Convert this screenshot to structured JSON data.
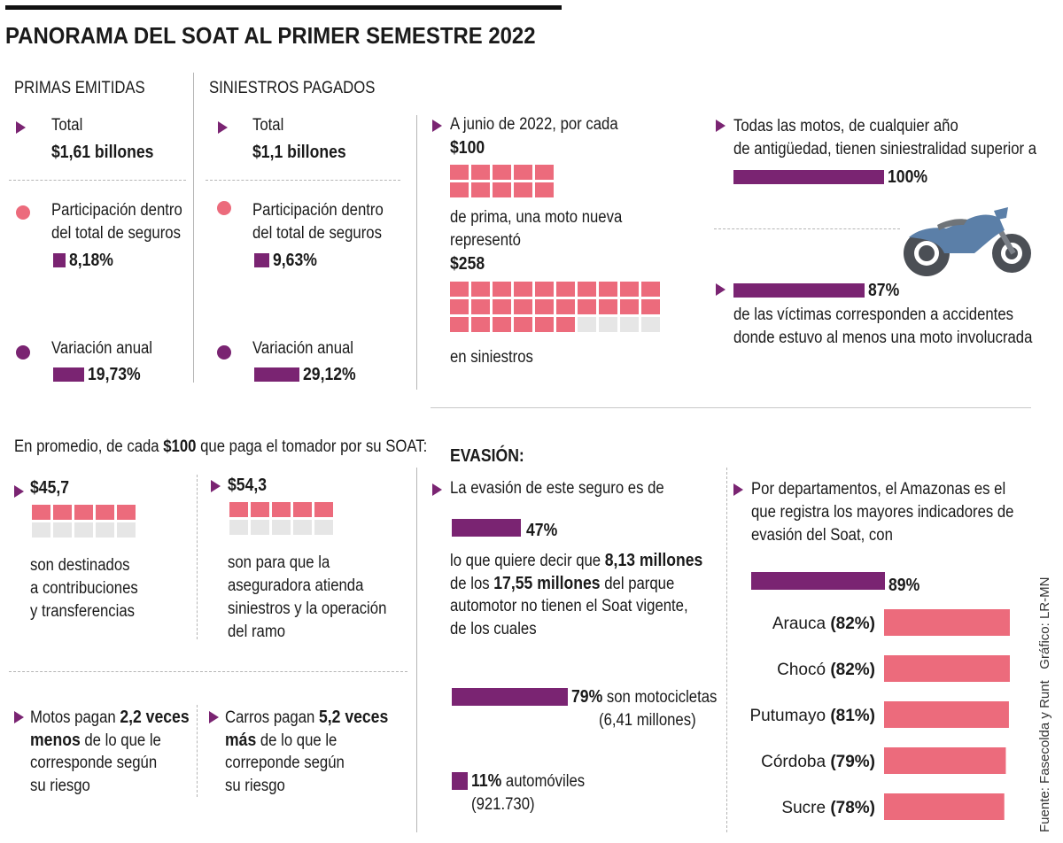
{
  "title": "PANORAMA DEL SOAT AL PRIMER SEMESTRE 2022",
  "colors": {
    "accent_purple": "#7a2472",
    "accent_pink": "#ec6b7c",
    "grid_off": "#e6e6e6"
  },
  "credits": {
    "source": "Fuente: Fasecolda y Runt",
    "graphic": "Gráfico: LR-MN"
  },
  "primas": {
    "header": "PRIMAS EMITIDAS",
    "total_label": "Total",
    "total_value": "$1,61 billones",
    "part_line1": "Participación dentro",
    "part_line2": "del total de seguros",
    "part_value": "8,18%",
    "var_label": "Variación anual",
    "var_value": "19,73%"
  },
  "siniestros": {
    "header": "SINIESTROS PAGADOS",
    "total_label": "Total",
    "total_value": "$1,1 billones",
    "part_line1": "Participación dentro",
    "part_line2": "del total de seguros",
    "part_value": "9,63%",
    "var_label": "Variación anual",
    "var_value": "29,12%"
  },
  "moto_box": {
    "line1": "A junio de 2022, por cada",
    "amount1": "$100",
    "line2": "de prima, una moto nueva",
    "line3": "representó",
    "amount2": "$258",
    "line4": "en siniestros"
  },
  "motos_right": {
    "line1": "Todas las motos, de cualquier año",
    "line2": "de antigüedad, tienen siniestralidad superior a",
    "value1": "100%",
    "value2": "87%",
    "line3": "de las víctimas corresponden a accidentes",
    "line4": "donde estuvo al menos una moto involucrada"
  },
  "promedio": {
    "intro_pre": "En promedio, de cada ",
    "intro_bold": "$100",
    "intro_post": " que paga el tomador por su SOAT:",
    "left_value": "$45,7",
    "left_l1": "son destinados",
    "left_l2": "a contribuciones",
    "left_l3": "y transferencias",
    "right_value": "$54,3",
    "right_l1": "son para que la",
    "right_l2": "aseguradora atienda",
    "right_l3": "siniestros y la operación",
    "right_l4": "del ramo"
  },
  "pagan": {
    "motos_pre": "Motos pagan ",
    "motos_bold1": "2,2 veces",
    "motos_bold2": "menos",
    "motos_post": " de lo que le",
    "motos_l3": "corresponde según",
    "motos_l4": "su riesgo",
    "carros_pre": "Carros pagan ",
    "carros_bold1": "5,2 veces",
    "carros_bold2": "más",
    "carros_post": " de lo que le",
    "carros_l3": "correponde según",
    "carros_l4": "su riesgo"
  },
  "evasion": {
    "header": "EVASIÓN:",
    "intro": "La evasión de este seguro es de",
    "value": "47%",
    "desc_pre": "lo que quiere decir que ",
    "desc_bold1": "8,13 millones",
    "desc_l2_pre": "de los ",
    "desc_bold2": "17,55 millones",
    "desc_l2_post": " del parque",
    "desc_l3": "automotor no tienen el Soat vigente,",
    "desc_l4": "de los cuales",
    "motos_value": "79%",
    "motos_label": " son motocicletas",
    "motos_sub": "(6,41 millones)",
    "autos_value": "11%",
    "autos_label": " automóviles",
    "autos_sub": "(921.730)"
  },
  "departamentos": {
    "line1": "Por departamentos, el Amazonas es el",
    "line2": "que registra los mayores indicadores de",
    "line3": "evasión del Soat, con",
    "amazonas_value": "89%"
  },
  "chart_data": [
    {
      "type": "bar",
      "title": "PRIMAS EMITIDAS / SINIESTROS PAGADOS",
      "categories": [
        "Participación primas",
        "Variación primas",
        "Participación siniestros",
        "Variación siniestros"
      ],
      "values": [
        8.18,
        19.73,
        9.63,
        29.12
      ],
      "unit": "%"
    },
    {
      "type": "table",
      "title": "Por cada $100 de prima, una moto nueva representó en siniestros",
      "series": [
        {
          "name": "prima",
          "values": [
            100
          ]
        },
        {
          "name": "siniestros",
          "values": [
            258
          ]
        }
      ]
    },
    {
      "type": "bar",
      "title": "Siniestralidad motos",
      "categories": [
        "siniestralidad superior a",
        "víctimas con moto involucrada"
      ],
      "values": [
        100,
        87
      ],
      "unit": "%"
    },
    {
      "type": "table",
      "title": "De cada $100 del SOAT",
      "categories": [
        "contribuciones y transferencias",
        "siniestros y operación del ramo"
      ],
      "values": [
        45.7,
        54.3
      ]
    },
    {
      "type": "bar",
      "title": "Evasión",
      "categories": [
        "evasión total",
        "motocicletas",
        "automóviles"
      ],
      "values": [
        47,
        79,
        11
      ],
      "unit": "%"
    },
    {
      "type": "bar",
      "title": "Evasión por departamentos",
      "categories": [
        "Amazonas",
        "Arauca",
        "Chocó",
        "Putumayo",
        "Córdoba",
        "Sucre"
      ],
      "values": [
        89,
        82,
        82,
        81,
        79,
        78
      ],
      "unit": "%"
    }
  ]
}
